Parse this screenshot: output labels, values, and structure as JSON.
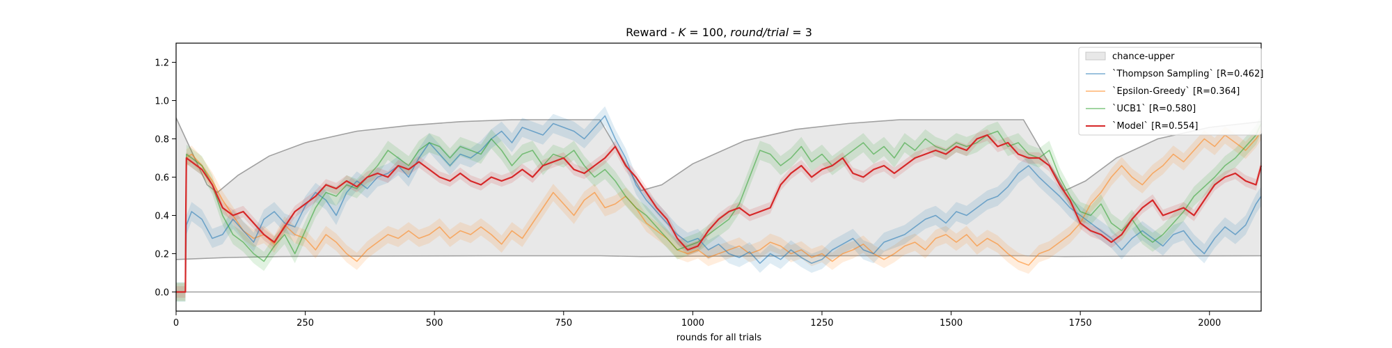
{
  "chart_data": {
    "type": "line",
    "title_prefix": "Reward - ",
    "title_k": "K",
    "title_k_value": " = 100, ",
    "title_r": "round/trial",
    "title_r_value": " = 3",
    "xlabel": "rounds for all trials",
    "ylabel": "",
    "xlim": [
      0,
      2100
    ],
    "ylim": [
      -0.1,
      1.3
    ],
    "xticks": [
      0,
      250,
      500,
      750,
      1000,
      1250,
      1500,
      1750,
      2000
    ],
    "yticks": [
      0.0,
      0.2,
      0.4,
      0.6,
      0.8,
      1.0,
      1.2
    ],
    "grid": false,
    "legend_position": "top-right",
    "legend": {
      "band": "chance-upper",
      "ts": "`Thompson Sampling` [R=0.462]",
      "eg": "`Epsilon-Greedy` [R=0.364]",
      "ucb": "`UCB1` [R=0.580]",
      "model": "`Model` [R=0.554]"
    },
    "colors": {
      "band": "#e8e8e8",
      "boundary": "#a0a0a0",
      "ts": "#1f77b4",
      "eg": "#ff7f0e",
      "ucb": "#2ca02c",
      "model": "#d62728"
    },
    "series": [
      {
        "key": "upper",
        "x": [
          0,
          60,
          80,
          120,
          180,
          250,
          350,
          450,
          550,
          650,
          750,
          820,
          900,
          940,
          1000,
          1100,
          1200,
          1300,
          1400,
          1500,
          1600,
          1640,
          1720,
          1760,
          1820,
          1900,
          2000,
          2100
        ],
        "values": [
          0.91,
          0.56,
          0.52,
          0.61,
          0.71,
          0.78,
          0.84,
          0.87,
          0.89,
          0.9,
          0.9,
          0.9,
          0.53,
          0.56,
          0.67,
          0.79,
          0.85,
          0.88,
          0.9,
          0.9,
          0.9,
          0.9,
          0.53,
          0.58,
          0.7,
          0.8,
          0.86,
          0.89
        ]
      },
      {
        "key": "lower",
        "x": [
          0,
          100,
          200,
          300,
          450,
          600,
          750,
          820,
          900,
          1000,
          1300,
          1640,
          1720,
          1900,
          2100
        ],
        "values": [
          0.17,
          0.18,
          0.185,
          0.187,
          0.188,
          0.189,
          0.189,
          0.189,
          0.185,
          0.187,
          0.189,
          0.189,
          0.185,
          0.188,
          0.189
        ]
      },
      {
        "key": "ts",
        "name": "`Thompson Sampling` [R=0.462]",
        "x": [
          0,
          18,
          20,
          30,
          50,
          70,
          90,
          110,
          130,
          150,
          170,
          190,
          210,
          230,
          250,
          270,
          290,
          310,
          330,
          350,
          370,
          390,
          410,
          430,
          450,
          470,
          490,
          510,
          530,
          550,
          570,
          590,
          610,
          630,
          650,
          670,
          690,
          710,
          730,
          750,
          770,
          790,
          810,
          830,
          850,
          870,
          890,
          910,
          930,
          950,
          970,
          990,
          1010,
          1030,
          1050,
          1070,
          1090,
          1110,
          1130,
          1150,
          1170,
          1190,
          1210,
          1230,
          1250,
          1270,
          1290,
          1310,
          1330,
          1350,
          1370,
          1390,
          1410,
          1430,
          1450,
          1470,
          1490,
          1510,
          1530,
          1550,
          1570,
          1590,
          1610,
          1630,
          1650,
          1670,
          1690,
          1710,
          1730,
          1750,
          1770,
          1790,
          1810,
          1830,
          1850,
          1870,
          1890,
          1910,
          1930,
          1950,
          1970,
          1990,
          2010,
          2030,
          2050,
          2070,
          2090,
          2100
        ],
        "values": [
          0.0,
          0.0,
          0.35,
          0.42,
          0.38,
          0.28,
          0.3,
          0.38,
          0.32,
          0.26,
          0.38,
          0.42,
          0.36,
          0.34,
          0.45,
          0.52,
          0.48,
          0.4,
          0.52,
          0.58,
          0.54,
          0.6,
          0.62,
          0.66,
          0.6,
          0.7,
          0.78,
          0.72,
          0.66,
          0.72,
          0.7,
          0.74,
          0.8,
          0.84,
          0.78,
          0.86,
          0.84,
          0.82,
          0.88,
          0.86,
          0.84,
          0.8,
          0.86,
          0.92,
          0.8,
          0.7,
          0.56,
          0.48,
          0.42,
          0.36,
          0.3,
          0.26,
          0.28,
          0.22,
          0.25,
          0.2,
          0.18,
          0.21,
          0.15,
          0.2,
          0.17,
          0.22,
          0.18,
          0.15,
          0.17,
          0.22,
          0.25,
          0.28,
          0.22,
          0.2,
          0.26,
          0.28,
          0.3,
          0.34,
          0.38,
          0.4,
          0.36,
          0.42,
          0.4,
          0.44,
          0.48,
          0.5,
          0.55,
          0.62,
          0.66,
          0.6,
          0.55,
          0.5,
          0.44,
          0.4,
          0.36,
          0.32,
          0.28,
          0.22,
          0.28,
          0.32,
          0.28,
          0.24,
          0.3,
          0.32,
          0.25,
          0.2,
          0.28,
          0.34,
          0.3,
          0.35,
          0.46,
          0.5
        ]
      },
      {
        "key": "eg",
        "name": "`Epsilon-Greedy` [R=0.364]",
        "x": [
          0,
          18,
          20,
          30,
          50,
          70,
          90,
          110,
          130,
          150,
          170,
          190,
          210,
          230,
          250,
          270,
          290,
          310,
          330,
          350,
          370,
          390,
          410,
          430,
          450,
          470,
          490,
          510,
          530,
          550,
          570,
          590,
          610,
          630,
          650,
          670,
          690,
          710,
          730,
          750,
          770,
          790,
          810,
          830,
          850,
          870,
          890,
          910,
          930,
          950,
          970,
          990,
          1010,
          1030,
          1050,
          1070,
          1090,
          1110,
          1130,
          1150,
          1170,
          1190,
          1210,
          1230,
          1250,
          1270,
          1290,
          1310,
          1330,
          1350,
          1370,
          1390,
          1410,
          1430,
          1450,
          1470,
          1490,
          1510,
          1530,
          1550,
          1570,
          1590,
          1610,
          1630,
          1650,
          1670,
          1690,
          1710,
          1730,
          1750,
          1770,
          1790,
          1810,
          1830,
          1850,
          1870,
          1890,
          1910,
          1930,
          1950,
          1970,
          1990,
          2010,
          2030,
          2050,
          2070,
          2090,
          2100
        ],
        "values": [
          0.0,
          0.0,
          0.7,
          0.72,
          0.66,
          0.58,
          0.48,
          0.4,
          0.32,
          0.28,
          0.3,
          0.25,
          0.35,
          0.3,
          0.28,
          0.22,
          0.3,
          0.26,
          0.2,
          0.16,
          0.22,
          0.26,
          0.3,
          0.28,
          0.32,
          0.28,
          0.3,
          0.34,
          0.28,
          0.32,
          0.3,
          0.34,
          0.3,
          0.25,
          0.32,
          0.28,
          0.36,
          0.44,
          0.52,
          0.46,
          0.4,
          0.48,
          0.52,
          0.44,
          0.46,
          0.5,
          0.44,
          0.36,
          0.32,
          0.28,
          0.22,
          0.2,
          0.22,
          0.18,
          0.2,
          0.22,
          0.24,
          0.2,
          0.22,
          0.26,
          0.24,
          0.2,
          0.22,
          0.18,
          0.2,
          0.16,
          0.2,
          0.22,
          0.25,
          0.2,
          0.17,
          0.2,
          0.24,
          0.26,
          0.22,
          0.28,
          0.3,
          0.26,
          0.3,
          0.24,
          0.28,
          0.25,
          0.2,
          0.16,
          0.14,
          0.2,
          0.22,
          0.26,
          0.3,
          0.36,
          0.46,
          0.52,
          0.6,
          0.66,
          0.6,
          0.56,
          0.62,
          0.66,
          0.72,
          0.68,
          0.74,
          0.8,
          0.76,
          0.82,
          0.78,
          0.74,
          0.8,
          0.84
        ]
      },
      {
        "key": "ucb",
        "name": "`UCB1` [R=0.580]",
        "x": [
          0,
          18,
          20,
          30,
          50,
          70,
          90,
          110,
          130,
          150,
          170,
          190,
          210,
          230,
          250,
          270,
          290,
          310,
          330,
          350,
          370,
          390,
          410,
          430,
          450,
          470,
          490,
          510,
          530,
          550,
          570,
          590,
          610,
          630,
          650,
          670,
          690,
          710,
          730,
          750,
          770,
          790,
          810,
          830,
          850,
          870,
          890,
          910,
          930,
          950,
          970,
          990,
          1010,
          1030,
          1050,
          1070,
          1090,
          1110,
          1130,
          1150,
          1170,
          1190,
          1210,
          1230,
          1250,
          1270,
          1290,
          1310,
          1330,
          1350,
          1370,
          1390,
          1410,
          1430,
          1450,
          1470,
          1490,
          1510,
          1530,
          1550,
          1570,
          1590,
          1610,
          1630,
          1650,
          1670,
          1690,
          1710,
          1730,
          1750,
          1770,
          1790,
          1810,
          1830,
          1850,
          1870,
          1890,
          1910,
          1930,
          1950,
          1970,
          1990,
          2010,
          2030,
          2050,
          2070,
          2090,
          2100
        ],
        "values": [
          0.0,
          0.0,
          0.72,
          0.7,
          0.66,
          0.56,
          0.4,
          0.3,
          0.26,
          0.2,
          0.16,
          0.24,
          0.3,
          0.2,
          0.32,
          0.44,
          0.52,
          0.5,
          0.56,
          0.54,
          0.6,
          0.66,
          0.74,
          0.7,
          0.66,
          0.74,
          0.78,
          0.76,
          0.7,
          0.76,
          0.74,
          0.72,
          0.8,
          0.74,
          0.66,
          0.72,
          0.74,
          0.66,
          0.72,
          0.7,
          0.74,
          0.66,
          0.6,
          0.64,
          0.58,
          0.5,
          0.44,
          0.4,
          0.34,
          0.28,
          0.22,
          0.24,
          0.26,
          0.3,
          0.34,
          0.38,
          0.46,
          0.6,
          0.74,
          0.72,
          0.66,
          0.7,
          0.76,
          0.68,
          0.72,
          0.66,
          0.7,
          0.74,
          0.78,
          0.72,
          0.76,
          0.7,
          0.78,
          0.74,
          0.8,
          0.76,
          0.74,
          0.78,
          0.76,
          0.78,
          0.82,
          0.84,
          0.76,
          0.78,
          0.72,
          0.7,
          0.74,
          0.6,
          0.5,
          0.42,
          0.4,
          0.46,
          0.36,
          0.32,
          0.38,
          0.3,
          0.26,
          0.3,
          0.36,
          0.42,
          0.5,
          0.55,
          0.6,
          0.66,
          0.7,
          0.76,
          0.82,
          0.88
        ]
      },
      {
        "key": "model",
        "name": "`Model` [R=0.554]",
        "x": [
          0,
          18,
          19,
          20,
          30,
          50,
          70,
          90,
          110,
          130,
          150,
          170,
          190,
          210,
          230,
          250,
          270,
          290,
          310,
          330,
          350,
          370,
          390,
          410,
          430,
          450,
          470,
          490,
          510,
          530,
          550,
          570,
          590,
          610,
          630,
          650,
          670,
          690,
          710,
          730,
          750,
          770,
          790,
          810,
          830,
          850,
          870,
          890,
          910,
          930,
          950,
          970,
          990,
          1010,
          1030,
          1050,
          1070,
          1090,
          1110,
          1130,
          1150,
          1170,
          1190,
          1210,
          1230,
          1250,
          1270,
          1290,
          1310,
          1330,
          1350,
          1370,
          1390,
          1410,
          1430,
          1450,
          1470,
          1490,
          1510,
          1530,
          1550,
          1570,
          1590,
          1610,
          1630,
          1650,
          1670,
          1690,
          1710,
          1730,
          1750,
          1770,
          1790,
          1810,
          1830,
          1850,
          1870,
          1890,
          1910,
          1930,
          1950,
          1970,
          1990,
          2010,
          2030,
          2050,
          2070,
          2090,
          2100
        ],
        "values": [
          0.0,
          0.0,
          0.45,
          0.7,
          0.68,
          0.64,
          0.56,
          0.44,
          0.4,
          0.42,
          0.36,
          0.3,
          0.26,
          0.34,
          0.42,
          0.46,
          0.5,
          0.56,
          0.54,
          0.58,
          0.55,
          0.6,
          0.62,
          0.6,
          0.66,
          0.64,
          0.68,
          0.64,
          0.6,
          0.58,
          0.62,
          0.58,
          0.56,
          0.6,
          0.58,
          0.6,
          0.64,
          0.6,
          0.66,
          0.68,
          0.7,
          0.64,
          0.62,
          0.66,
          0.7,
          0.76,
          0.66,
          0.6,
          0.52,
          0.44,
          0.38,
          0.28,
          0.22,
          0.24,
          0.32,
          0.38,
          0.42,
          0.44,
          0.4,
          0.42,
          0.44,
          0.56,
          0.62,
          0.66,
          0.6,
          0.64,
          0.66,
          0.7,
          0.62,
          0.6,
          0.64,
          0.66,
          0.62,
          0.66,
          0.7,
          0.72,
          0.74,
          0.72,
          0.76,
          0.74,
          0.8,
          0.82,
          0.76,
          0.78,
          0.72,
          0.7,
          0.7,
          0.66,
          0.56,
          0.48,
          0.36,
          0.32,
          0.3,
          0.26,
          0.3,
          0.38,
          0.44,
          0.48,
          0.4,
          0.42,
          0.44,
          0.4,
          0.48,
          0.56,
          0.6,
          0.62,
          0.58,
          0.56,
          0.66
        ]
      }
    ],
    "std_band": {
      "ts": 0.05,
      "eg": 0.045,
      "ucb": 0.05,
      "model": 0.03
    }
  }
}
